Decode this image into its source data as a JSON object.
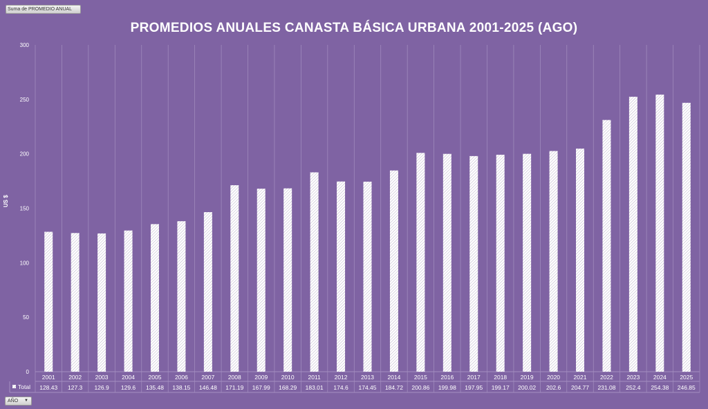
{
  "field_button": "Suma de PROMEDIO ANUAL",
  "filter_button": "AÑO",
  "colors": {
    "background": "#7f63a3",
    "bar": "#ffffff",
    "grid": "#a48fc0"
  },
  "chart_data": {
    "type": "bar",
    "title": "PROMEDIOS ANUALES CANASTA BÁSICA URBANA 2001-2025 (AGO)",
    "ylabel": "US $",
    "xlabel": "",
    "ylim": [
      0,
      300
    ],
    "yticks": [
      0,
      50,
      100,
      150,
      200,
      250,
      300
    ],
    "grid": "vertical",
    "bar_fill": "white diagonal hatch",
    "categories": [
      "2001",
      "2002",
      "2003",
      "2004",
      "2005",
      "2006",
      "2007",
      "2008",
      "2009",
      "2010",
      "2011",
      "2012",
      "2013",
      "2014",
      "2015",
      "2016",
      "2017",
      "2018",
      "2019",
      "2020",
      "2021",
      "2022",
      "2023",
      "2024",
      "2025"
    ],
    "series": [
      {
        "name": "Total",
        "values": [
          128.43,
          127.3,
          126.9,
          129.6,
          135.48,
          138.15,
          146.48,
          171.19,
          167.99,
          168.29,
          183.01,
          174.6,
          174.45,
          184.72,
          200.86,
          199.98,
          197.95,
          199.17,
          200.02,
          202.6,
          204.77,
          231.08,
          252.4,
          254.38,
          246.85
        ]
      }
    ],
    "data_table": {
      "row_label": "Total",
      "shown": true
    }
  }
}
